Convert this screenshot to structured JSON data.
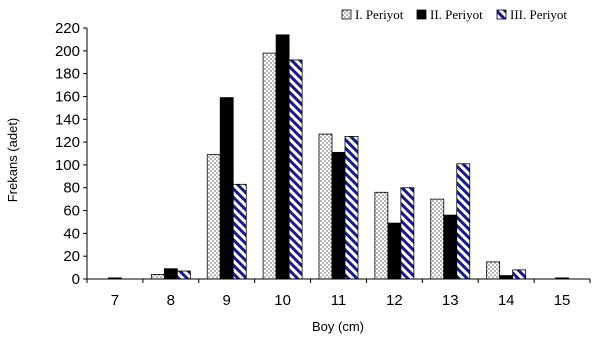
{
  "chart_data": {
    "type": "bar",
    "title": "",
    "xlabel": "Boy (cm)",
    "ylabel": "Frekans (adet)",
    "categories": [
      "7",
      "8",
      "9",
      "10",
      "11",
      "12",
      "13",
      "14",
      "15"
    ],
    "series": [
      {
        "name": "I. Periyot",
        "values": [
          0,
          4,
          109,
          198,
          127,
          76,
          70,
          15,
          0
        ],
        "pattern": "dots"
      },
      {
        "name": "II. Periyot",
        "values": [
          1,
          9,
          159,
          214,
          111,
          49,
          56,
          3,
          1
        ],
        "pattern": "solid"
      },
      {
        "name": "III. Periyot",
        "values": [
          0,
          7,
          83,
          192,
          125,
          80,
          101,
          8,
          0
        ],
        "pattern": "diagonal-stripes"
      }
    ],
    "ylim": [
      0,
      220
    ],
    "yticks": [
      0,
      20,
      40,
      60,
      80,
      100,
      120,
      140,
      160,
      180,
      200,
      220
    ],
    "grid": false,
    "legend_position": "top-right",
    "colors": {
      "solid": "#000000",
      "stripe": "#1a1a8c",
      "dots": "#555555"
    }
  }
}
